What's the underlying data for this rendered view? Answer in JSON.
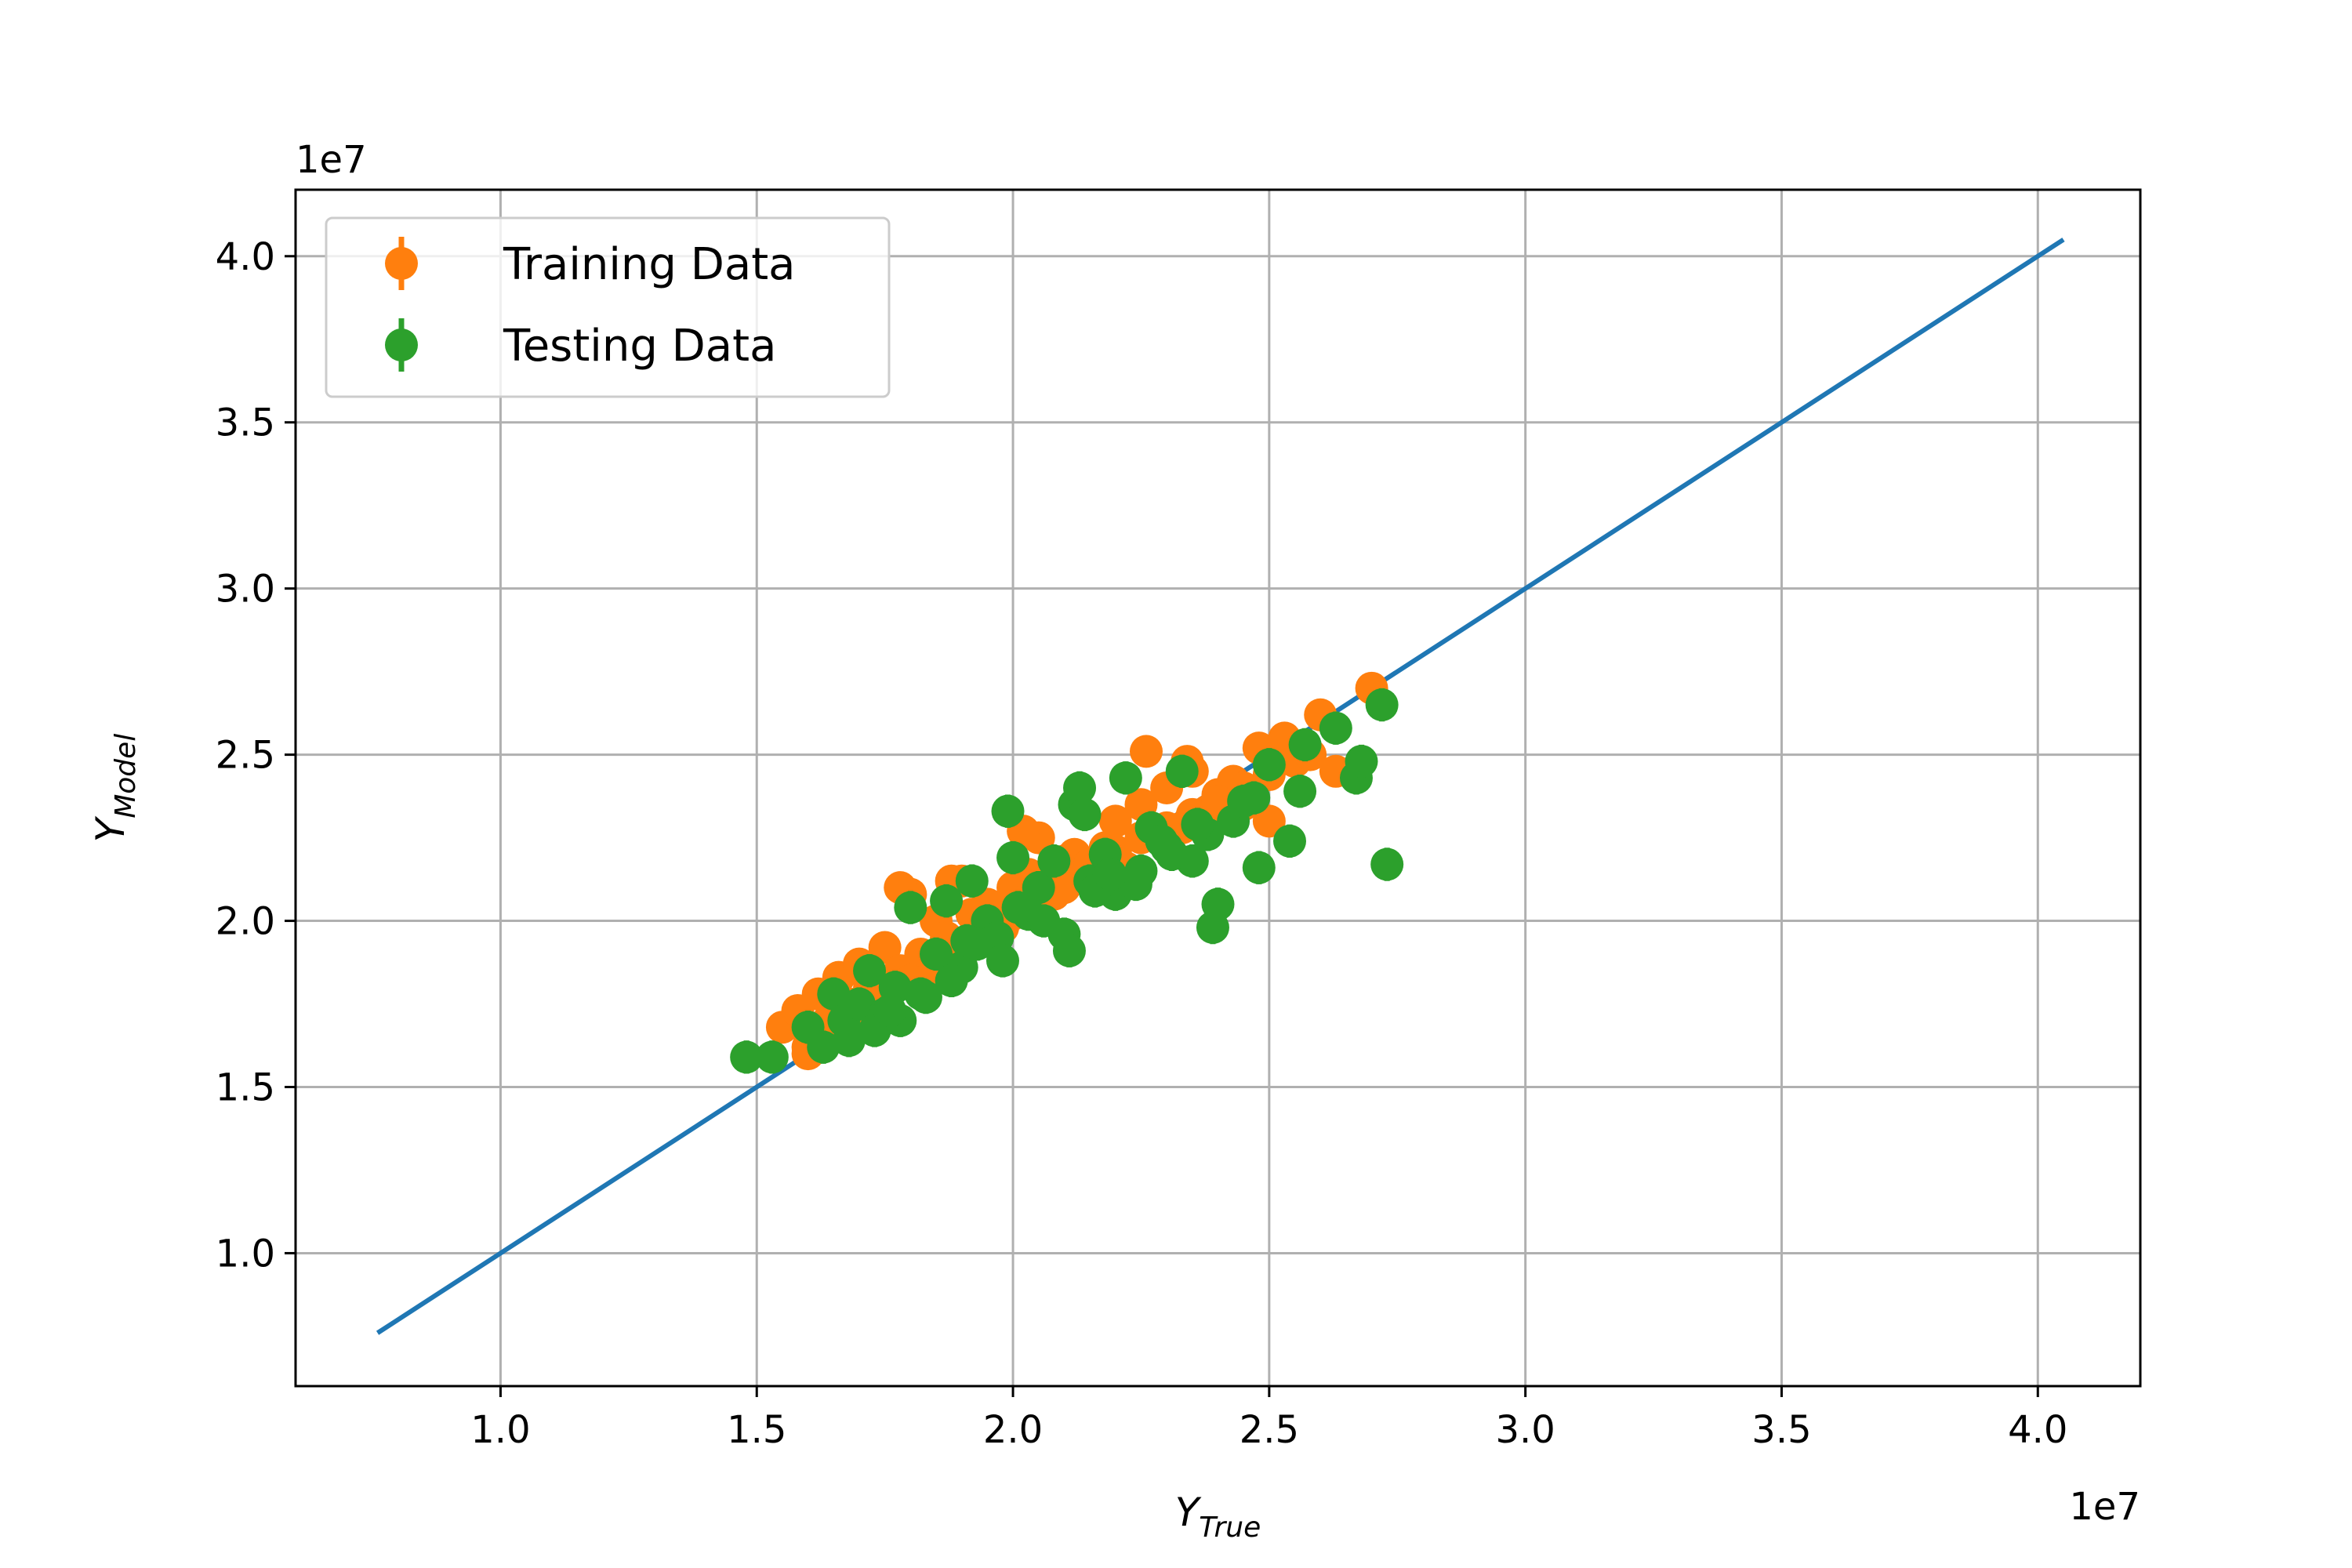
{
  "chart_data": {
    "type": "scatter",
    "title": "",
    "xlabel": "Y",
    "xlabel_sub": "True",
    "ylabel": "Y",
    "ylabel_sub": "Model",
    "x_offset_text": "1e7",
    "y_offset_text": "1e7",
    "xlim": [
      0.6,
      4.2
    ],
    "ylim": [
      0.6,
      4.2
    ],
    "x_ticks": [
      1.0,
      1.5,
      2.0,
      2.5,
      3.0,
      3.5,
      4.0
    ],
    "x_tick_labels": [
      "1.0",
      "1.5",
      "2.0",
      "2.5",
      "3.0",
      "3.5",
      "4.0"
    ],
    "y_ticks": [
      1.0,
      1.5,
      2.0,
      2.5,
      3.0,
      3.5,
      4.0
    ],
    "y_tick_labels": [
      "1.0",
      "1.5",
      "2.0",
      "2.5",
      "3.0",
      "3.5",
      "4.0"
    ],
    "grid": true,
    "legend_position": "top-left",
    "line": {
      "x": [
        0.76,
        4.05
      ],
      "y": [
        0.76,
        4.05
      ],
      "color": "#1f77b4"
    },
    "series": [
      {
        "name": "Training Data",
        "color": "#ff7f0e",
        "yerr": 0.04,
        "x": [
          1.55,
          1.58,
          1.6,
          1.62,
          1.64,
          1.66,
          1.68,
          1.7,
          1.72,
          1.75,
          1.78,
          1.8,
          1.82,
          1.85,
          1.87,
          1.9,
          1.92,
          1.95,
          1.98,
          2.0,
          2.03,
          2.05,
          2.08,
          2.1,
          2.12,
          2.15,
          2.18,
          2.2,
          2.22,
          2.25,
          2.27,
          2.3,
          2.33,
          2.35,
          2.38,
          2.4,
          2.43,
          2.45,
          2.48,
          2.5,
          2.53,
          2.55,
          2.58,
          2.6,
          2.63,
          2.7,
          1.6,
          1.65,
          1.7,
          1.75,
          1.8,
          1.85,
          1.9,
          1.95,
          2.0,
          2.05,
          2.1,
          2.15,
          2.2,
          2.25,
          2.3,
          2.35,
          2.4,
          2.45,
          2.5,
          2.02,
          2.26,
          2.34,
          1.78,
          1.88
        ],
        "y": [
          1.68,
          1.73,
          1.62,
          1.78,
          1.7,
          1.83,
          1.75,
          1.87,
          1.8,
          1.92,
          1.85,
          2.08,
          1.9,
          2.0,
          1.95,
          2.12,
          2.02,
          2.05,
          1.98,
          2.1,
          2.14,
          2.25,
          2.08,
          2.18,
          2.2,
          2.13,
          2.22,
          2.3,
          2.16,
          2.35,
          2.26,
          2.4,
          2.28,
          2.45,
          2.33,
          2.38,
          2.42,
          2.35,
          2.52,
          2.3,
          2.55,
          2.48,
          2.5,
          2.62,
          2.45,
          2.7,
          1.6,
          1.66,
          1.72,
          1.78,
          1.82,
          1.86,
          1.92,
          1.96,
          2.02,
          2.06,
          2.1,
          2.17,
          2.21,
          2.25,
          2.28,
          2.32,
          2.36,
          2.4,
          2.44,
          2.27,
          2.51,
          2.48,
          2.1,
          2.12
        ]
      },
      {
        "name": "Testing Data",
        "color": "#2ca02c",
        "yerr": 0.05,
        "x": [
          1.48,
          1.53,
          1.6,
          1.63,
          1.65,
          1.67,
          1.7,
          1.72,
          1.75,
          1.77,
          1.8,
          1.82,
          1.85,
          1.87,
          1.9,
          1.92,
          1.95,
          1.97,
          1.99,
          2.0,
          2.03,
          2.05,
          2.08,
          2.1,
          2.12,
          2.13,
          2.15,
          2.18,
          2.2,
          2.22,
          2.25,
          2.27,
          2.3,
          2.33,
          2.35,
          2.38,
          2.39,
          2.4,
          2.43,
          2.45,
          2.48,
          2.5,
          2.54,
          2.56,
          2.57,
          2.63,
          2.67,
          2.68,
          2.72,
          2.73,
          1.68,
          1.73,
          1.78,
          1.83,
          1.88,
          1.93,
          1.98,
          2.06,
          2.16,
          2.24,
          2.31,
          2.36,
          2.14,
          2.29,
          2.47,
          1.76,
          1.91,
          2.01,
          2.11,
          2.19
        ],
        "y": [
          1.59,
          1.59,
          1.68,
          1.62,
          1.78,
          1.7,
          1.75,
          1.85,
          1.72,
          1.8,
          2.04,
          1.78,
          1.9,
          2.06,
          1.86,
          2.12,
          2.0,
          1.95,
          2.33,
          2.19,
          2.02,
          2.1,
          2.18,
          1.96,
          2.35,
          2.4,
          2.12,
          2.2,
          2.08,
          2.43,
          2.15,
          2.28,
          2.22,
          2.45,
          2.18,
          2.26,
          1.98,
          2.05,
          2.3,
          2.36,
          2.16,
          2.47,
          2.24,
          2.39,
          2.53,
          2.58,
          2.43,
          2.48,
          2.65,
          2.17,
          1.64,
          1.67,
          1.7,
          1.77,
          1.82,
          1.93,
          1.88,
          2.0,
          2.09,
          2.11,
          2.2,
          2.29,
          2.32,
          2.24,
          2.37,
          1.73,
          1.94,
          2.04,
          1.91,
          2.14
        ]
      }
    ]
  }
}
